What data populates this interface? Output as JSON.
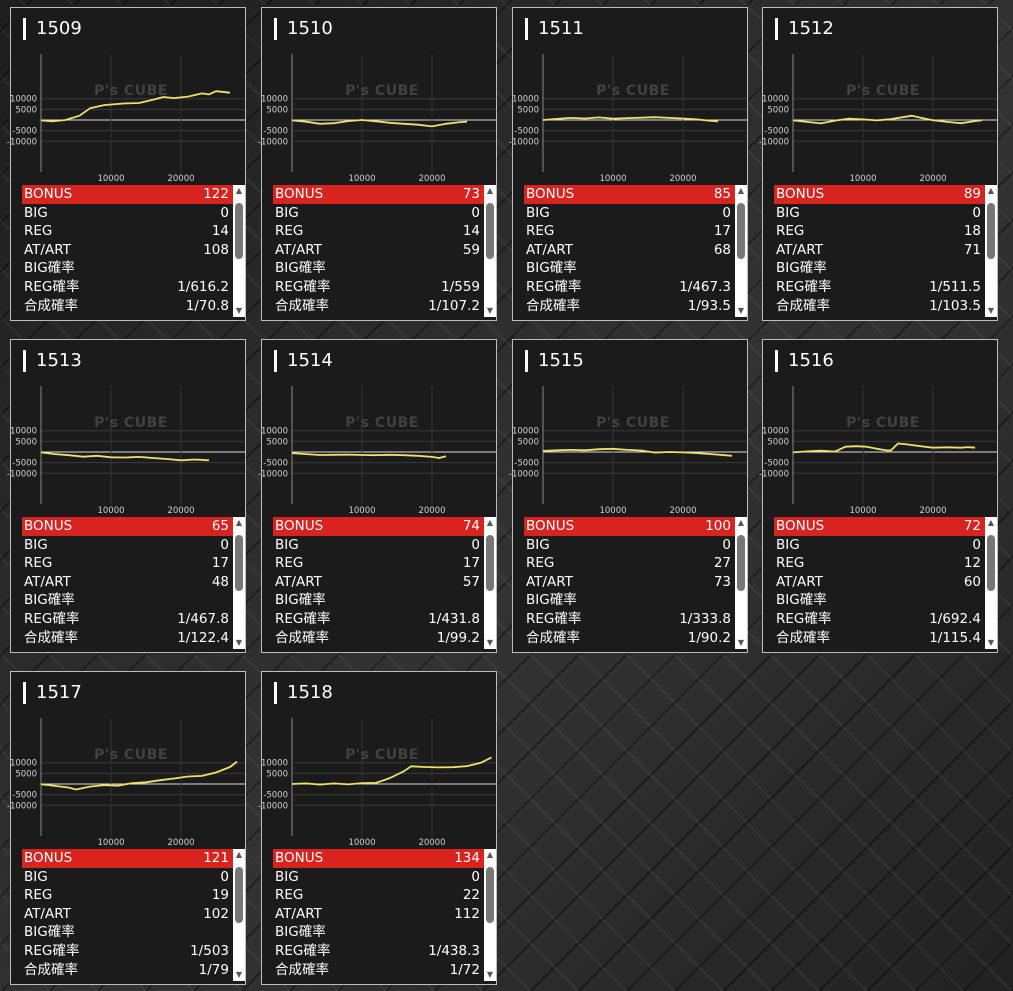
{
  "colors": {
    "accent": "#d9231f",
    "line": "#f0e06a",
    "card_bg": "#1b1b1b"
  },
  "watermark": "P's CUBE",
  "axis": {
    "y_ticks": [
      "10000",
      "5000",
      "-5000",
      "-10000"
    ],
    "x_ticks": [
      "10000",
      "20000"
    ]
  },
  "labels": {
    "bonus": "BONUS",
    "big": "BIG",
    "reg": "REG",
    "atart": "AT/ART",
    "big_rate": "BIG確率",
    "reg_rate": "REG確率",
    "combined_rate": "合成確率"
  },
  "icons": {
    "up": "scroll-up-icon",
    "down": "scroll-down-icon"
  },
  "machines": [
    {
      "id": "1509",
      "bonus": "122",
      "big": "0",
      "reg": "14",
      "atart": "108",
      "big_rate": "",
      "reg_rate": "1/616.2",
      "combined_rate": "1/70.8",
      "graph": [
        [
          0,
          -200
        ],
        [
          1500,
          -600
        ],
        [
          3500,
          0
        ],
        [
          5500,
          2000
        ],
        [
          7000,
          5500
        ],
        [
          9000,
          7000
        ],
        [
          12000,
          7800
        ],
        [
          14000,
          8000
        ],
        [
          16000,
          9500
        ],
        [
          17500,
          10800
        ],
        [
          19000,
          10300
        ],
        [
          21000,
          11000
        ],
        [
          23000,
          12500
        ],
        [
          24000,
          12000
        ],
        [
          25000,
          13500
        ],
        [
          26500,
          13000
        ],
        [
          27000,
          12800
        ]
      ]
    },
    {
      "id": "1510",
      "bonus": "73",
      "big": "0",
      "reg": "14",
      "atart": "59",
      "big_rate": "",
      "reg_rate": "1/559",
      "combined_rate": "1/107.2",
      "graph": [
        [
          0,
          -200
        ],
        [
          2000,
          -800
        ],
        [
          4000,
          -1800
        ],
        [
          6000,
          -1500
        ],
        [
          8000,
          -500
        ],
        [
          10000,
          0
        ],
        [
          12000,
          -600
        ],
        [
          14000,
          -1300
        ],
        [
          16000,
          -1800
        ],
        [
          18000,
          -2200
        ],
        [
          20000,
          -3000
        ],
        [
          22000,
          -1800
        ],
        [
          24000,
          -1000
        ],
        [
          25000,
          -800
        ]
      ]
    },
    {
      "id": "1511",
      "bonus": "85",
      "big": "0",
      "reg": "17",
      "atart": "68",
      "big_rate": "",
      "reg_rate": "1/467.3",
      "combined_rate": "1/93.5",
      "graph": [
        [
          0,
          0
        ],
        [
          2000,
          500
        ],
        [
          4000,
          1000
        ],
        [
          6000,
          700
        ],
        [
          8000,
          1200
        ],
        [
          10000,
          600
        ],
        [
          12000,
          900
        ],
        [
          14000,
          1100
        ],
        [
          16000,
          1300
        ],
        [
          18000,
          1000
        ],
        [
          20000,
          700
        ],
        [
          22000,
          300
        ],
        [
          24000,
          -400
        ],
        [
          25000,
          -600
        ]
      ]
    },
    {
      "id": "1512",
      "bonus": "89",
      "big": "0",
      "reg": "18",
      "atart": "71",
      "big_rate": "",
      "reg_rate": "1/511.5",
      "combined_rate": "1/103.5",
      "graph": [
        [
          0,
          -200
        ],
        [
          2000,
          -900
        ],
        [
          4000,
          -1600
        ],
        [
          6000,
          -300
        ],
        [
          8000,
          600
        ],
        [
          10000,
          300
        ],
        [
          12000,
          -200
        ],
        [
          14000,
          400
        ],
        [
          16000,
          1500
        ],
        [
          17000,
          2000
        ],
        [
          18000,
          1200
        ],
        [
          20000,
          -100
        ],
        [
          22000,
          -900
        ],
        [
          24000,
          -1500
        ],
        [
          26000,
          -500
        ],
        [
          27000,
          -100
        ]
      ]
    },
    {
      "id": "1513",
      "bonus": "65",
      "big": "0",
      "reg": "17",
      "atart": "48",
      "big_rate": "",
      "reg_rate": "1/467.8",
      "combined_rate": "1/122.4",
      "graph": [
        [
          0,
          -200
        ],
        [
          2000,
          -1000
        ],
        [
          4000,
          -1500
        ],
        [
          6000,
          -2200
        ],
        [
          8000,
          -1800
        ],
        [
          10000,
          -2500
        ],
        [
          12000,
          -2600
        ],
        [
          14000,
          -2300
        ],
        [
          16000,
          -2800
        ],
        [
          18000,
          -3300
        ],
        [
          20000,
          -3900
        ],
        [
          22000,
          -3500
        ],
        [
          24000,
          -3900
        ]
      ]
    },
    {
      "id": "1514",
      "bonus": "74",
      "big": "0",
      "reg": "17",
      "atart": "57",
      "big_rate": "",
      "reg_rate": "1/431.8",
      "combined_rate": "1/99.2",
      "graph": [
        [
          0,
          -500
        ],
        [
          2000,
          -1000
        ],
        [
          4000,
          -1400
        ],
        [
          6000,
          -1300
        ],
        [
          8000,
          -1200
        ],
        [
          10000,
          -1400
        ],
        [
          12000,
          -1500
        ],
        [
          14000,
          -1300
        ],
        [
          16000,
          -1500
        ],
        [
          18000,
          -1800
        ],
        [
          20000,
          -2300
        ],
        [
          21000,
          -2800
        ],
        [
          22000,
          -2000
        ]
      ]
    },
    {
      "id": "1515",
      "bonus": "100",
      "big": "0",
      "reg": "27",
      "atart": "73",
      "big_rate": "",
      "reg_rate": "1/333.8",
      "combined_rate": "1/90.2",
      "graph": [
        [
          0,
          500
        ],
        [
          2000,
          800
        ],
        [
          4000,
          1000
        ],
        [
          6000,
          800
        ],
        [
          8000,
          1300
        ],
        [
          10000,
          1500
        ],
        [
          12000,
          1000
        ],
        [
          14000,
          700
        ],
        [
          16000,
          -300
        ],
        [
          18000,
          0
        ],
        [
          20000,
          -200
        ],
        [
          22000,
          -500
        ],
        [
          24000,
          -1000
        ],
        [
          26000,
          -1500
        ],
        [
          27000,
          -1800
        ]
      ]
    },
    {
      "id": "1516",
      "bonus": "72",
      "big": "0",
      "reg": "12",
      "atart": "60",
      "big_rate": "",
      "reg_rate": "1/692.4",
      "combined_rate": "1/115.4",
      "graph": [
        [
          0,
          -200
        ],
        [
          2000,
          300
        ],
        [
          4000,
          600
        ],
        [
          6000,
          200
        ],
        [
          7500,
          2500
        ],
        [
          9000,
          2700
        ],
        [
          10500,
          2500
        ],
        [
          12000,
          1500
        ],
        [
          13500,
          700
        ],
        [
          14000,
          800
        ],
        [
          15000,
          4000
        ],
        [
          16000,
          3700
        ],
        [
          18000,
          2800
        ],
        [
          20000,
          2000
        ],
        [
          22000,
          2200
        ],
        [
          24000,
          2000
        ],
        [
          25000,
          2300
        ],
        [
          26000,
          2000
        ]
      ]
    },
    {
      "id": "1517",
      "bonus": "121",
      "big": "0",
      "reg": "19",
      "atart": "102",
      "big_rate": "",
      "reg_rate": "1/503",
      "combined_rate": "1/79",
      "graph": [
        [
          0,
          -100
        ],
        [
          2000,
          -900
        ],
        [
          4000,
          -1700
        ],
        [
          5000,
          -2600
        ],
        [
          7000,
          -1200
        ],
        [
          9000,
          -500
        ],
        [
          11000,
          -800
        ],
        [
          13000,
          400
        ],
        [
          15000,
          800
        ],
        [
          17000,
          1800
        ],
        [
          19000,
          2600
        ],
        [
          21000,
          3500
        ],
        [
          23000,
          3800
        ],
        [
          25000,
          5400
        ],
        [
          27000,
          8000
        ],
        [
          28000,
          10500
        ]
      ]
    },
    {
      "id": "1518",
      "bonus": "134",
      "big": "0",
      "reg": "22",
      "atart": "112",
      "big_rate": "",
      "reg_rate": "1/438.3",
      "combined_rate": "1/72",
      "graph": [
        [
          0,
          0
        ],
        [
          2000,
          300
        ],
        [
          4000,
          -300
        ],
        [
          6000,
          300
        ],
        [
          8000,
          -200
        ],
        [
          10000,
          400
        ],
        [
          12000,
          500
        ],
        [
          14000,
          2800
        ],
        [
          16000,
          6000
        ],
        [
          17000,
          8300
        ],
        [
          19000,
          8000
        ],
        [
          21000,
          7800
        ],
        [
          23000,
          7900
        ],
        [
          25000,
          8400
        ],
        [
          27000,
          10000
        ],
        [
          28500,
          12500
        ]
      ]
    }
  ]
}
